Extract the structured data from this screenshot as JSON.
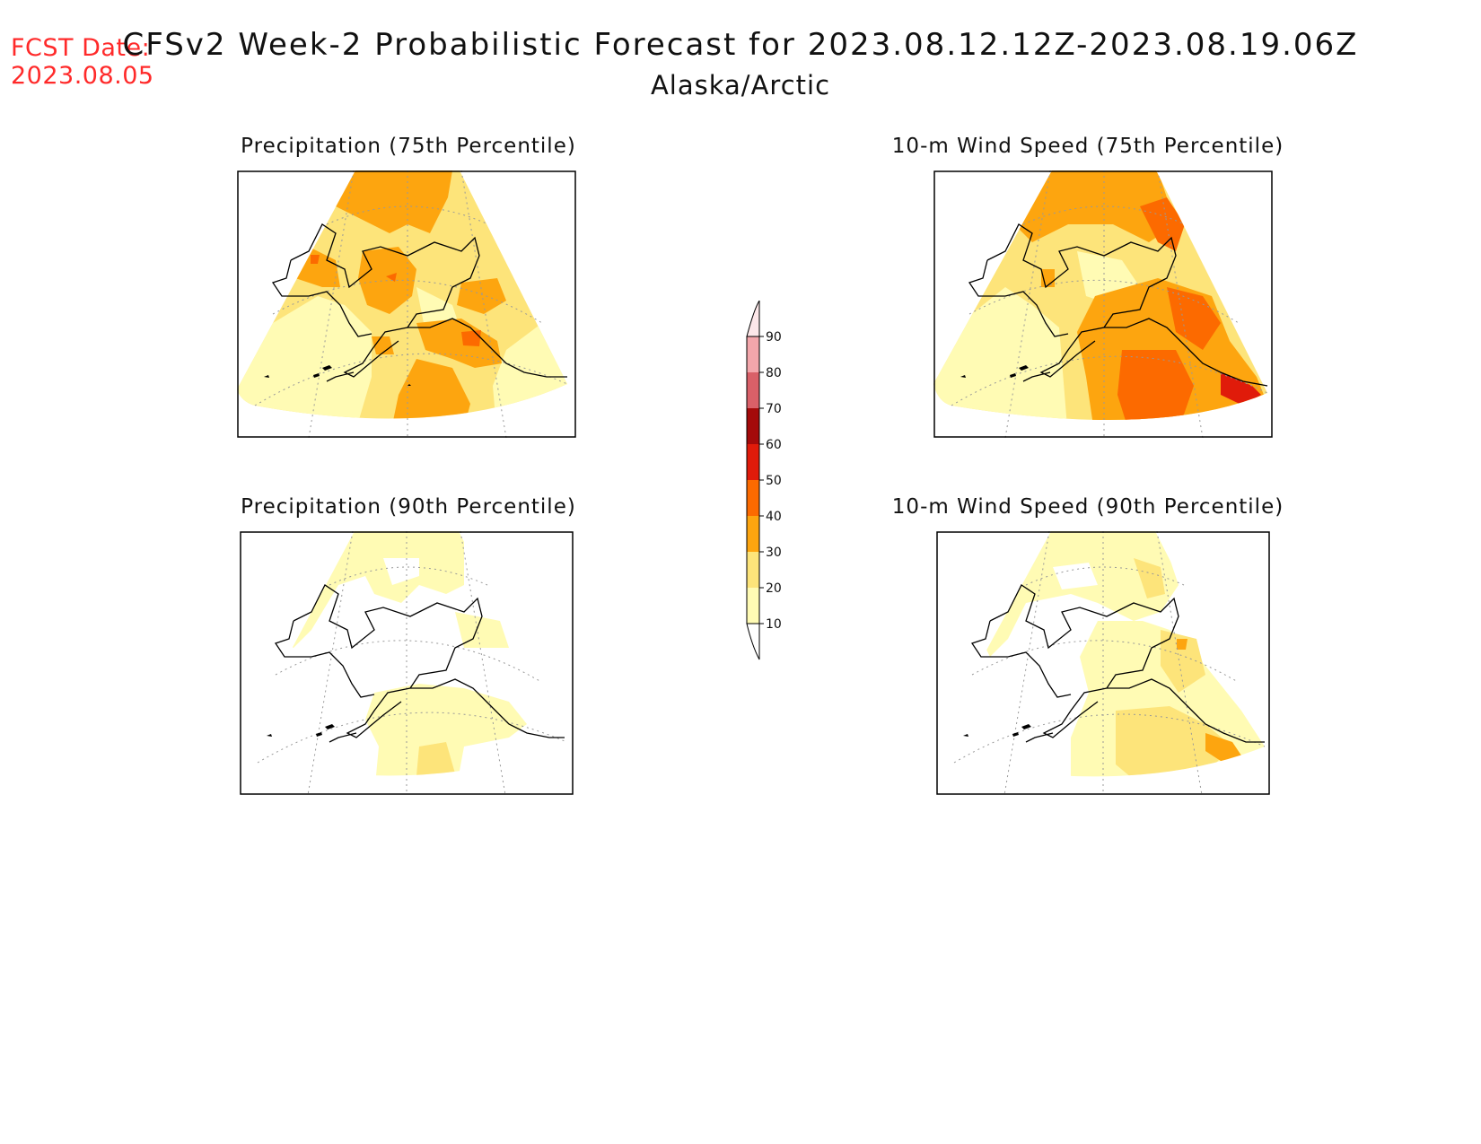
{
  "header": {
    "fcst_label": "FCST Date:",
    "fcst_date": "2023.08.05",
    "title": "CFSv2 Week-2 Probabilistic Forecast for 2023.08.12.12Z-2023.08.19.06Z",
    "region": "Alaska/Arctic"
  },
  "panels": [
    {
      "title": "Precipitation (75th Percentile)"
    },
    {
      "title": "10-m Wind Speed (75th Percentile)"
    },
    {
      "title": "Precipitation (90th Percentile)"
    },
    {
      "title": "10-m Wind Speed (90th Percentile)"
    }
  ],
  "colorbar": {
    "levels": [
      "10",
      "20",
      "30",
      "40",
      "50",
      "60",
      "70",
      "80",
      "90"
    ],
    "colors": {
      "10-20": "#fffbb4",
      "20-30": "#fde47a",
      "30-40": "#fda50f",
      "40-50": "#fc6a00",
      "50-60": "#e01b0a",
      "60-70": "#a40a0a",
      "70-80": "#d96068",
      "80-90": "#f3a6ab",
      "90+": "#fde7e9"
    }
  },
  "palette": {
    "c10": "#fffbb4",
    "c20": "#fde47a",
    "c30": "#fda50f",
    "c40": "#fc6a00",
    "c50": "#e01b0a",
    "fcst_red": "#ff2a2a"
  }
}
